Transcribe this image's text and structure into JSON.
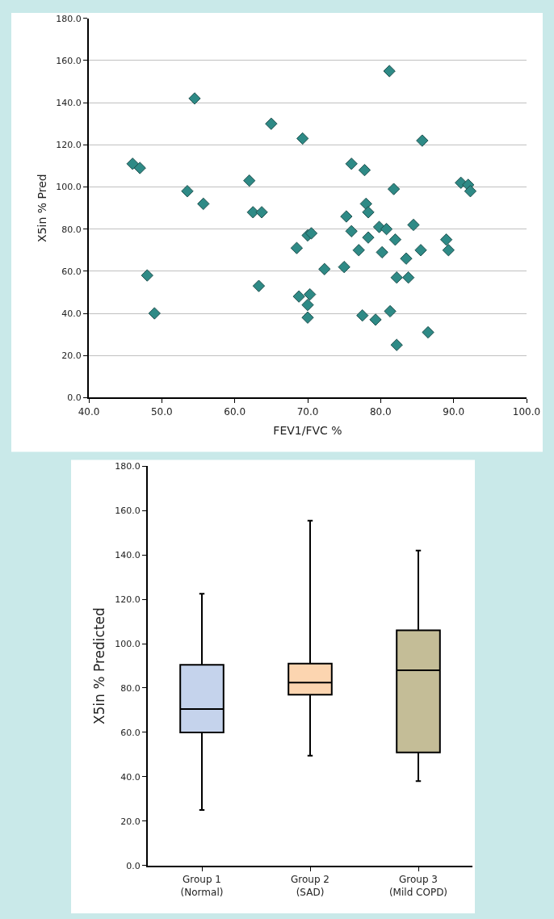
{
  "chart_data": [
    {
      "type": "scatter",
      "xlabel": "FEV1/FVC %",
      "ylabel": "X5in % Pred",
      "marker": "diamond",
      "grid": "y",
      "color": "#2e8a86",
      "x": [
        46,
        47,
        48,
        49,
        53.5,
        54.5,
        55.7,
        62,
        62.5,
        63.3,
        63.7,
        65,
        68.5,
        68.8,
        69.3,
        69.8,
        70,
        70,
        70,
        70.3,
        70.5,
        72.3,
        75,
        75.3,
        76,
        76,
        77,
        77.5,
        77.8,
        78,
        78.3,
        78.3,
        79.3,
        79.8,
        80.2,
        80.8,
        81.2,
        81.3,
        81.8,
        82,
        82.2,
        82.2,
        83.5,
        83.8,
        84.5,
        85.5,
        85.7,
        86.5,
        89,
        89.3,
        91,
        92,
        92.3
      ],
      "values": [
        111,
        109,
        58,
        40,
        98,
        142,
        92,
        103,
        88,
        53,
        88,
        130,
        71,
        48,
        123,
        null,
        44,
        77,
        38,
        49,
        78,
        61,
        62,
        86,
        111,
        79,
        70,
        39,
        108,
        92,
        88,
        76,
        37,
        81,
        69,
        80,
        155,
        41,
        99,
        75,
        25,
        57,
        66,
        57,
        82,
        70,
        122,
        31,
        75,
        70,
        102,
        101,
        98
      ],
      "xlim": [
        40,
        100
      ],
      "xticks": [
        {
          "value": 40,
          "label": "40.0"
        },
        {
          "value": 50,
          "label": "50.0"
        },
        {
          "value": 60,
          "label": "60.0"
        },
        {
          "value": 70,
          "label": "70.0"
        },
        {
          "value": 80,
          "label": "80.0"
        },
        {
          "value": 90,
          "label": "90.0"
        },
        {
          "value": 100,
          "label": "100.0"
        }
      ],
      "ylim": [
        0,
        180
      ],
      "yticks": [
        {
          "value": 0,
          "label": "0.0"
        },
        {
          "value": 20,
          "label": "20.0"
        },
        {
          "value": 40,
          "label": "40.0"
        },
        {
          "value": 60,
          "label": "60.0"
        },
        {
          "value": 80,
          "label": "80.0"
        },
        {
          "value": 100,
          "label": "100.0"
        },
        {
          "value": 120,
          "label": "120.0"
        },
        {
          "value": 140,
          "label": "140.0"
        },
        {
          "value": 160,
          "label": "160.0"
        },
        {
          "value": 180,
          "label": "180.0"
        }
      ]
    },
    {
      "type": "box",
      "ylabel": "X5in % Predicted",
      "grid": false,
      "categories": [
        "Group 1\n(Normal)",
        "Group 2\n(SAD)",
        "Group 3\n(Mild COPD)"
      ],
      "colors": [
        "#c5d3ec",
        "#fcd5b0",
        "#c4bd97"
      ],
      "boxes": [
        {
          "low": 25,
          "q1": 60,
          "median": 70.5,
          "q3": 90.5,
          "high": 122.5
        },
        {
          "low": 49.5,
          "q1": 77,
          "median": 82.5,
          "q3": 91,
          "high": 155.5
        },
        {
          "low": 38,
          "q1": 51,
          "median": 88,
          "q3": 106,
          "high": 142
        }
      ],
      "ylim": [
        0,
        180
      ],
      "yticks": [
        {
          "value": 0,
          "label": "0.0"
        },
        {
          "value": 20,
          "label": "20.0"
        },
        {
          "value": 40,
          "label": "40.0"
        },
        {
          "value": 60,
          "label": "60.0"
        },
        {
          "value": 80,
          "label": "80.0"
        },
        {
          "value": 100,
          "label": "100.0"
        },
        {
          "value": 120,
          "label": "120.0"
        },
        {
          "value": 140,
          "label": "140.0"
        },
        {
          "value": 160,
          "label": "160.0"
        },
        {
          "value": 180,
          "label": "180.0"
        }
      ]
    }
  ]
}
